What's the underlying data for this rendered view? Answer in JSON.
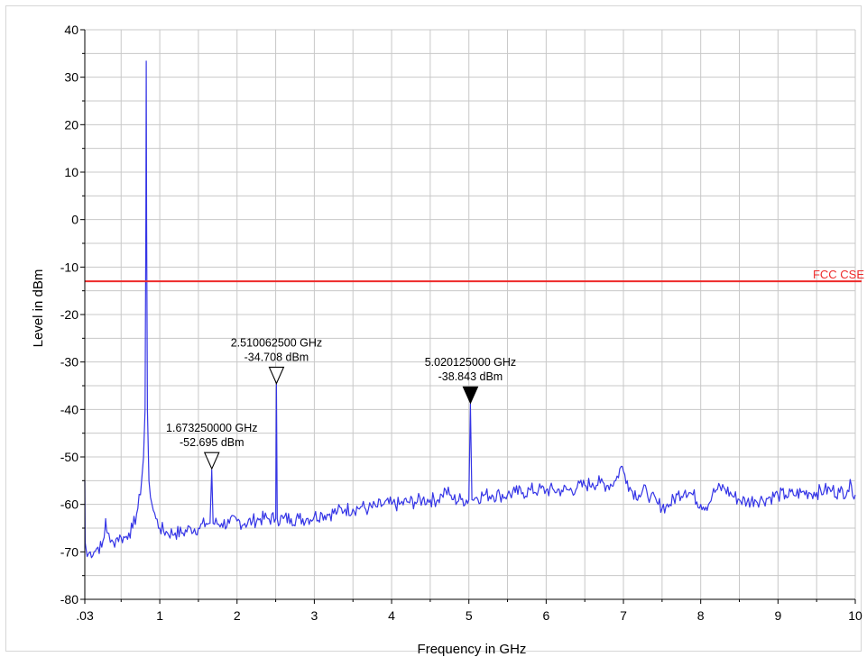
{
  "chart_data": {
    "type": "line",
    "xlabel": "Frequency in GHz",
    "ylabel": "Level in dBm",
    "xlim": [
      0.03,
      10
    ],
    "ylim": [
      -80,
      40
    ],
    "x_ticks": [
      {
        "value": 0.03,
        "label": ".03"
      },
      {
        "value": 1,
        "label": "1"
      },
      {
        "value": 2,
        "label": "2"
      },
      {
        "value": 3,
        "label": "3"
      },
      {
        "value": 4,
        "label": "4"
      },
      {
        "value": 5,
        "label": "5"
      },
      {
        "value": 6,
        "label": "6"
      },
      {
        "value": 7,
        "label": "7"
      },
      {
        "value": 8,
        "label": "8"
      },
      {
        "value": 9,
        "label": "9"
      },
      {
        "value": 10,
        "label": "10"
      }
    ],
    "y_ticks": [
      40,
      30,
      20,
      10,
      0,
      -10,
      -20,
      -30,
      -40,
      -50,
      -60,
      -70,
      -80
    ],
    "grid": true,
    "colors": {
      "trace": "#3535e6",
      "limit": "#ee2a2a",
      "grid": "#c8c8c8"
    },
    "series": [
      {
        "points": [
          [
            0.03,
            -55
          ],
          [
            0.035,
            -68
          ],
          [
            0.06,
            -71
          ],
          [
            0.1,
            -70
          ],
          [
            0.15,
            -70
          ],
          [
            0.2,
            -69
          ],
          [
            0.25,
            -69
          ],
          [
            0.28,
            -67
          ],
          [
            0.3,
            -63
          ],
          [
            0.32,
            -66
          ],
          [
            0.36,
            -68
          ],
          [
            0.4,
            -68
          ],
          [
            0.45,
            -67
          ],
          [
            0.5,
            -67
          ],
          [
            0.55,
            -67
          ],
          [
            0.6,
            -66
          ],
          [
            0.65,
            -65
          ],
          [
            0.7,
            -62
          ],
          [
            0.75,
            -58
          ],
          [
            0.79,
            -50
          ],
          [
            0.81,
            -40
          ],
          [
            0.82,
            0
          ],
          [
            0.825,
            33.4
          ],
          [
            0.83,
            0
          ],
          [
            0.84,
            -40
          ],
          [
            0.86,
            -55
          ],
          [
            0.9,
            -60
          ],
          [
            0.95,
            -63
          ],
          [
            1.0,
            -65
          ],
          [
            1.1,
            -66
          ],
          [
            1.2,
            -66
          ],
          [
            1.3,
            -66
          ],
          [
            1.4,
            -65
          ],
          [
            1.5,
            -65
          ],
          [
            1.6,
            -64
          ],
          [
            1.65,
            -64
          ],
          [
            1.673,
            -52.695
          ],
          [
            1.69,
            -64
          ],
          [
            1.8,
            -64
          ],
          [
            1.9,
            -64
          ],
          [
            2.0,
            -63.5
          ],
          [
            2.1,
            -64
          ],
          [
            2.2,
            -63.5
          ],
          [
            2.3,
            -63
          ],
          [
            2.4,
            -63
          ],
          [
            2.5,
            -63
          ],
          [
            2.51,
            -34.708
          ],
          [
            2.52,
            -63
          ],
          [
            2.6,
            -63
          ],
          [
            2.7,
            -63
          ],
          [
            2.8,
            -63
          ],
          [
            2.9,
            -63
          ],
          [
            3.0,
            -62.5
          ],
          [
            3.1,
            -62
          ],
          [
            3.2,
            -62
          ],
          [
            3.3,
            -61.5
          ],
          [
            3.4,
            -61
          ],
          [
            3.5,
            -61
          ],
          [
            3.6,
            -60.5
          ],
          [
            3.7,
            -61
          ],
          [
            3.8,
            -60.5
          ],
          [
            3.9,
            -60
          ],
          [
            4.0,
            -60
          ],
          [
            4.1,
            -60
          ],
          [
            4.2,
            -59.5
          ],
          [
            4.3,
            -59.5
          ],
          [
            4.4,
            -59
          ],
          [
            4.5,
            -59
          ],
          [
            4.6,
            -59
          ],
          [
            4.65,
            -58
          ],
          [
            4.7,
            -57
          ],
          [
            4.75,
            -58
          ],
          [
            4.8,
            -59
          ],
          [
            4.9,
            -59
          ],
          [
            5.0,
            -59
          ],
          [
            5.02,
            -38.843
          ],
          [
            5.04,
            -59
          ],
          [
            5.1,
            -58.5
          ],
          [
            5.2,
            -58
          ],
          [
            5.3,
            -58
          ],
          [
            5.4,
            -58
          ],
          [
            5.5,
            -58
          ],
          [
            5.6,
            -57.5
          ],
          [
            5.7,
            -57.5
          ],
          [
            5.8,
            -57
          ],
          [
            5.9,
            -57
          ],
          [
            6.0,
            -57
          ],
          [
            6.1,
            -57
          ],
          [
            6.2,
            -57
          ],
          [
            6.3,
            -57
          ],
          [
            6.4,
            -56.5
          ],
          [
            6.5,
            -56
          ],
          [
            6.6,
            -55.5
          ],
          [
            6.7,
            -55.5
          ],
          [
            6.8,
            -56
          ],
          [
            6.9,
            -55
          ],
          [
            6.97,
            -52
          ],
          [
            7.0,
            -53
          ],
          [
            7.05,
            -55
          ],
          [
            7.1,
            -57
          ],
          [
            7.2,
            -58
          ],
          [
            7.3,
            -57
          ],
          [
            7.35,
            -58.5
          ],
          [
            7.45,
            -60
          ],
          [
            7.55,
            -60.5
          ],
          [
            7.6,
            -60
          ],
          [
            7.7,
            -58
          ],
          [
            7.8,
            -57
          ],
          [
            7.9,
            -58
          ],
          [
            8.0,
            -60
          ],
          [
            8.1,
            -60
          ],
          [
            8.15,
            -58
          ],
          [
            8.2,
            -57
          ],
          [
            8.3,
            -56.5
          ],
          [
            8.4,
            -58
          ],
          [
            8.5,
            -59
          ],
          [
            8.6,
            -59.5
          ],
          [
            8.7,
            -59
          ],
          [
            8.8,
            -59
          ],
          [
            8.9,
            -58.5
          ],
          [
            9.0,
            -58
          ],
          [
            9.1,
            -58
          ],
          [
            9.2,
            -58
          ],
          [
            9.3,
            -57.5
          ],
          [
            9.4,
            -57.5
          ],
          [
            9.5,
            -57.5
          ],
          [
            9.6,
            -57
          ],
          [
            9.7,
            -57
          ],
          [
            9.8,
            -57.5
          ],
          [
            9.9,
            -57
          ],
          [
            9.95,
            -56
          ],
          [
            10.0,
            -58
          ]
        ]
      }
    ],
    "limit_line": {
      "label": "FCC CSE",
      "value": -13
    },
    "markers": [
      {
        "freq_label": "1.673250000 GHz",
        "level_label": "-52.695 dBm",
        "x": 1.67325,
        "y": -52.695,
        "filled": false
      },
      {
        "freq_label": "2.510062500 GHz",
        "level_label": "-34.708 dBm",
        "x": 2.5100625,
        "y": -34.708,
        "filled": false
      },
      {
        "freq_label": "5.020125000 GHz",
        "level_label": "-38.843 dBm",
        "x": 5.020125,
        "y": -38.843,
        "filled": true
      }
    ]
  }
}
